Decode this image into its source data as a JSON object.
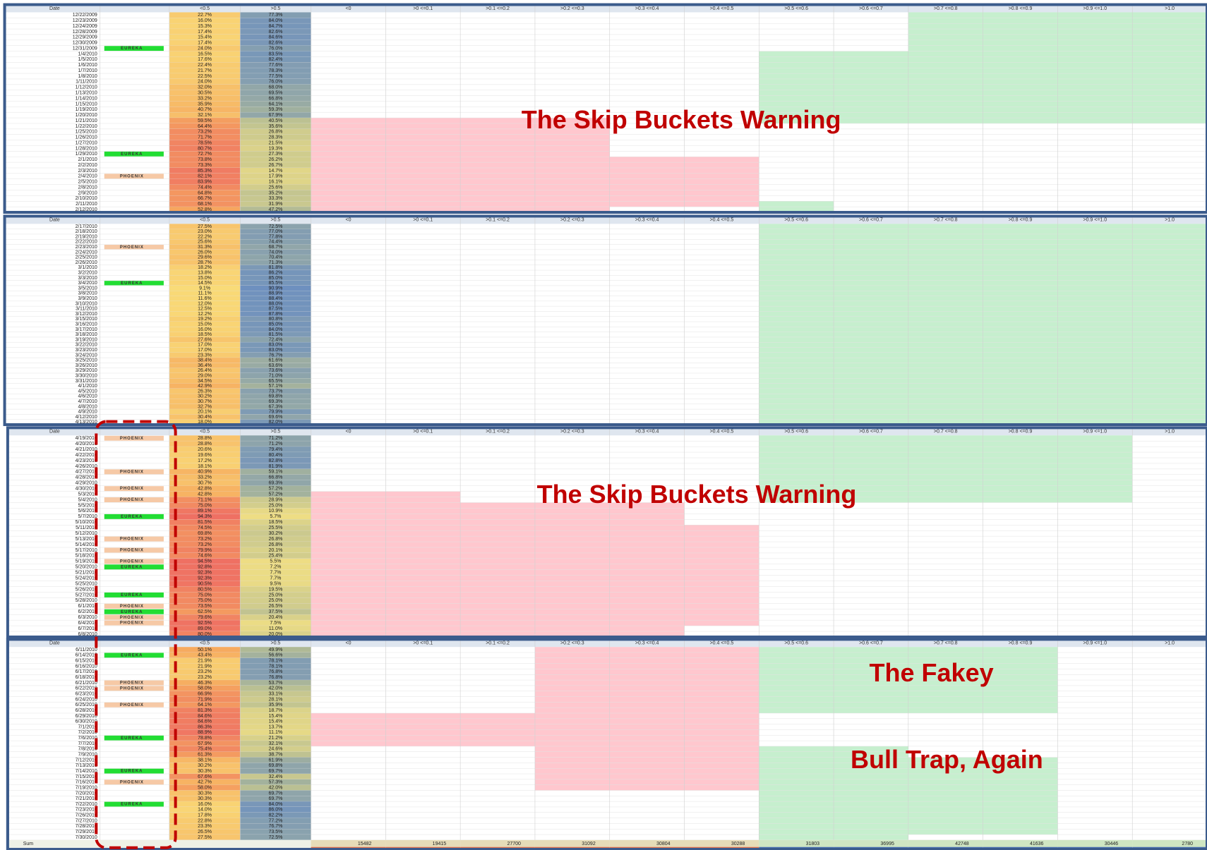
{
  "columns": [
    "Date",
    "<0.5",
    ">0.5",
    "<0",
    ">0 <=0.1",
    ">0.1 <=0.2",
    ">0.2 <=0.3",
    ">0.3 <=0.4",
    ">0.4 <=0.5",
    ">0.5 <=0.6",
    ">0.6 <=0.7",
    ">0.7 <=0.8",
    ">0.8 <=0.9",
    ">0.9 <=1.0",
    ">1.0"
  ],
  "panels": [
    {
      "rows": [
        [
          "12/22/2009",
          "22.7%",
          "77.3%"
        ],
        [
          "12/23/2009",
          "16.0%",
          "84.0%"
        ],
        [
          "12/24/2009",
          "15.3%",
          "84.7%"
        ],
        [
          "12/28/2009",
          "17.4%",
          "82.6%"
        ],
        [
          "12/29/2009",
          "15.4%",
          "84.6%"
        ],
        [
          "12/30/2009",
          "17.4%",
          "82.6%"
        ],
        [
          "12/31/2009",
          "24.0%",
          "76.0%",
          "EUREKA"
        ],
        [
          "1/4/2010",
          "16.5%",
          "83.5%"
        ],
        [
          "1/5/2010",
          "17.6%",
          "82.4%"
        ],
        [
          "1/6/2010",
          "22.4%",
          "77.6%"
        ],
        [
          "1/7/2010",
          "21.7%",
          "78.3%"
        ],
        [
          "1/8/2010",
          "22.5%",
          "77.5%"
        ],
        [
          "1/11/2010",
          "24.0%",
          "76.0%"
        ],
        [
          "1/12/2010",
          "32.0%",
          "68.0%"
        ],
        [
          "1/13/2010",
          "30.5%",
          "69.5%"
        ],
        [
          "1/14/2010",
          "33.2%",
          "66.8%"
        ],
        [
          "1/15/2010",
          "35.9%",
          "64.1%"
        ],
        [
          "1/19/2010",
          "40.7%",
          "59.3%"
        ],
        [
          "1/20/2010",
          "32.1%",
          "67.9%"
        ],
        [
          "1/21/2010",
          "59.5%",
          "40.5%"
        ],
        [
          "1/22/2010",
          "64.4%",
          "35.6%"
        ],
        [
          "1/25/2010",
          "73.2%",
          "26.8%"
        ],
        [
          "1/26/2010",
          "71.7%",
          "28.3%"
        ],
        [
          "1/27/2010",
          "78.5%",
          "21.5%"
        ],
        [
          "1/28/2010",
          "80.7%",
          "19.3%"
        ],
        [
          "1/29/2010",
          "72.7%",
          "27.3%",
          "EUREKA"
        ],
        [
          "2/1/2010",
          "73.8%",
          "26.2%"
        ],
        [
          "2/2/2010",
          "73.3%",
          "26.7%"
        ],
        [
          "2/3/2010",
          "85.3%",
          "14.7%"
        ],
        [
          "2/4/2010",
          "82.1%",
          "17.9%",
          "PHOENIX"
        ],
        [
          "2/5/2010",
          "83.9%",
          "16.1%"
        ],
        [
          "2/8/2010",
          "74.4%",
          "25.6%"
        ],
        [
          "2/9/2010",
          "64.8%",
          "35.2%"
        ],
        [
          "2/10/2010",
          "66.7%",
          "33.3%"
        ],
        [
          "2/11/2010",
          "68.1%",
          "31.9%"
        ],
        [
          "2/12/2010",
          "52.8%",
          "47.2%"
        ]
      ]
    },
    {
      "rows": [
        [
          "2/17/2010",
          "27.5%",
          "72.5%"
        ],
        [
          "2/18/2010",
          "23.0%",
          "77.0%"
        ],
        [
          "2/19/2010",
          "22.2%",
          "77.8%"
        ],
        [
          "2/22/2010",
          "25.6%",
          "74.4%"
        ],
        [
          "2/23/2010",
          "31.3%",
          "68.7%",
          "PHOENIX"
        ],
        [
          "2/24/2010",
          "26.0%",
          "74.0%"
        ],
        [
          "2/25/2010",
          "29.6%",
          "70.4%"
        ],
        [
          "2/26/2010",
          "28.7%",
          "71.3%"
        ],
        [
          "3/1/2010",
          "18.2%",
          "81.8%"
        ],
        [
          "3/2/2010",
          "13.8%",
          "86.2%"
        ],
        [
          "3/3/2010",
          "15.0%",
          "85.0%"
        ],
        [
          "3/4/2010",
          "14.5%",
          "85.5%",
          "EUREKA"
        ],
        [
          "3/5/2010",
          "9.1%",
          "90.9%"
        ],
        [
          "3/8/2010",
          "11.1%",
          "88.9%"
        ],
        [
          "3/9/2010",
          "11.6%",
          "88.4%"
        ],
        [
          "3/10/2010",
          "12.0%",
          "88.0%"
        ],
        [
          "3/11/2010",
          "12.5%",
          "87.5%"
        ],
        [
          "3/12/2010",
          "12.2%",
          "87.8%"
        ],
        [
          "3/15/2010",
          "19.2%",
          "80.8%"
        ],
        [
          "3/16/2010",
          "15.0%",
          "85.0%"
        ],
        [
          "3/17/2010",
          "16.0%",
          "84.0%"
        ],
        [
          "3/18/2010",
          "18.5%",
          "81.5%"
        ],
        [
          "3/19/2010",
          "27.6%",
          "72.4%"
        ],
        [
          "3/22/2010",
          "17.0%",
          "83.0%"
        ],
        [
          "3/23/2010",
          "17.0%",
          "83.0%"
        ],
        [
          "3/24/2010",
          "23.3%",
          "76.7%"
        ],
        [
          "3/25/2010",
          "38.4%",
          "61.6%"
        ],
        [
          "3/26/2010",
          "36.4%",
          "63.6%"
        ],
        [
          "3/29/2010",
          "26.4%",
          "73.6%"
        ],
        [
          "3/30/2010",
          "29.0%",
          "71.0%"
        ],
        [
          "3/31/2010",
          "34.5%",
          "65.5%"
        ],
        [
          "4/1/2010",
          "42.9%",
          "57.1%"
        ],
        [
          "4/5/2010",
          "26.3%",
          "73.7%"
        ],
        [
          "4/6/2010",
          "30.2%",
          "69.8%"
        ],
        [
          "4/7/2010",
          "30.7%",
          "69.3%"
        ],
        [
          "4/8/2010",
          "32.7%",
          "67.3%"
        ],
        [
          "4/9/2010",
          "20.1%",
          "79.9%"
        ],
        [
          "4/12/2010",
          "30.4%",
          "69.6%"
        ],
        [
          "4/13/2010",
          "18.0%",
          "82.0%"
        ]
      ]
    },
    {
      "rows": [
        [
          "4/19/2010",
          "28.8%",
          "71.2%",
          "PHOENIX"
        ],
        [
          "4/20/2010",
          "28.8%",
          "71.2%"
        ],
        [
          "4/21/2010",
          "20.6%",
          "79.4%"
        ],
        [
          "4/22/2010",
          "19.6%",
          "80.4%"
        ],
        [
          "4/23/2010",
          "17.2%",
          "82.8%"
        ],
        [
          "4/26/2010",
          "18.1%",
          "81.9%"
        ],
        [
          "4/27/2010",
          "40.9%",
          "59.1%",
          "PHOENIX"
        ],
        [
          "4/28/2010",
          "33.2%",
          "66.8%"
        ],
        [
          "4/29/2010",
          "30.7%",
          "69.3%"
        ],
        [
          "4/30/2010",
          "42.8%",
          "57.2%",
          "PHOENIX"
        ],
        [
          "5/3/2010",
          "42.8%",
          "57.2%"
        ],
        [
          "5/4/2010",
          "71.1%",
          "28.9%",
          "PHOENIX"
        ],
        [
          "5/5/2010",
          "75.0%",
          "25.0%"
        ],
        [
          "5/6/2010",
          "89.1%",
          "10.9%"
        ],
        [
          "5/7/2010",
          "94.3%",
          "5.7%",
          "EUREKA"
        ],
        [
          "5/10/2010",
          "81.5%",
          "18.5%"
        ],
        [
          "5/11/2010",
          "74.5%",
          "25.5%"
        ],
        [
          "5/12/2010",
          "69.8%",
          "30.2%"
        ],
        [
          "5/13/2010",
          "73.2%",
          "26.8%",
          "PHOENIX"
        ],
        [
          "5/14/2010",
          "73.2%",
          "26.8%"
        ],
        [
          "5/17/2010",
          "79.9%",
          "20.1%",
          "PHOENIX"
        ],
        [
          "5/18/2010",
          "74.6%",
          "25.4%"
        ],
        [
          "5/19/2010",
          "94.5%",
          "5.5%",
          "PHOENIX"
        ],
        [
          "5/20/2010",
          "92.8%",
          "7.2%",
          "EUREKA"
        ],
        [
          "5/21/2010",
          "92.3%",
          "7.7%"
        ],
        [
          "5/24/2010",
          "92.3%",
          "7.7%"
        ],
        [
          "5/25/2010",
          "90.5%",
          "9.5%"
        ],
        [
          "5/26/2010",
          "80.5%",
          "19.5%"
        ],
        [
          "5/27/2010",
          "75.0%",
          "25.0%",
          "EUREKA"
        ],
        [
          "5/28/2010",
          "75.0%",
          "25.0%"
        ],
        [
          "6/1/2010",
          "73.5%",
          "26.5%",
          "PHOENIX"
        ],
        [
          "6/2/2010",
          "62.5%",
          "37.5%",
          "EUREKA"
        ],
        [
          "6/3/2010",
          "79.6%",
          "20.4%",
          "PHOENIX"
        ],
        [
          "6/4/2010",
          "92.5%",
          "7.5%",
          "PHOENIX"
        ],
        [
          "6/7/2010",
          "89.0%",
          "11.0%"
        ],
        [
          "6/8/2010",
          "80.0%",
          "20.0%"
        ]
      ]
    },
    {
      "rows": [
        [
          "6/11/2010",
          "50.1%",
          "49.9%"
        ],
        [
          "6/14/2010",
          "43.4%",
          "56.6%",
          "EUREKA"
        ],
        [
          "6/15/2010",
          "21.9%",
          "78.1%"
        ],
        [
          "6/16/2010",
          "21.9%",
          "78.1%"
        ],
        [
          "6/17/2010",
          "23.2%",
          "76.8%"
        ],
        [
          "6/18/2010",
          "23.2%",
          "76.8%"
        ],
        [
          "6/21/2010",
          "46.3%",
          "53.7%",
          "PHOENIX"
        ],
        [
          "6/22/2010",
          "58.0%",
          "42.0%",
          "PHOENIX"
        ],
        [
          "6/23/2010",
          "66.9%",
          "33.1%"
        ],
        [
          "6/24/2010",
          "71.9%",
          "28.1%"
        ],
        [
          "6/25/2010",
          "64.1%",
          "35.9%",
          "PHOENIX"
        ],
        [
          "6/28/2010",
          "81.3%",
          "18.7%"
        ],
        [
          "6/29/2010",
          "84.6%",
          "15.4%"
        ],
        [
          "6/30/2010",
          "84.6%",
          "15.4%"
        ],
        [
          "7/1/2010",
          "86.3%",
          "13.7%"
        ],
        [
          "7/2/2010",
          "88.9%",
          "11.1%"
        ],
        [
          "7/6/2010",
          "78.8%",
          "21.2%",
          "EUREKA"
        ],
        [
          "7/7/2010",
          "67.9%",
          "32.1%"
        ],
        [
          "7/8/2010",
          "75.4%",
          "24.6%"
        ],
        [
          "7/9/2010",
          "61.3%",
          "38.7%"
        ],
        [
          "7/12/2010",
          "38.1%",
          "61.9%"
        ],
        [
          "7/13/2010",
          "30.2%",
          "69.8%"
        ],
        [
          "7/14/2010",
          "30.3%",
          "69.7%",
          "EUREKA"
        ],
        [
          "7/15/2010",
          "67.6%",
          "32.4%"
        ],
        [
          "7/16/2010",
          "42.7%",
          "57.3%",
          "PHOENIX"
        ],
        [
          "7/19/2010",
          "58.0%",
          "42.0%"
        ],
        [
          "7/20/2010",
          "30.3%",
          "69.7%"
        ],
        [
          "7/21/2010",
          "30.3%",
          "69.7%"
        ],
        [
          "7/22/2010",
          "16.0%",
          "84.0%",
          "EUREKA"
        ],
        [
          "7/23/2010",
          "14.0%",
          "86.0%"
        ],
        [
          "7/26/2010",
          "17.8%",
          "82.2%"
        ],
        [
          "7/27/2010",
          "22.8%",
          "77.2%"
        ],
        [
          "7/28/2010",
          "23.3%",
          "76.7%"
        ],
        [
          "7/29/2010",
          "26.5%",
          "73.5%"
        ],
        [
          "7/30/2010",
          "27.5%",
          "72.5%"
        ]
      ]
    }
  ],
  "sum": {
    "label": "Sum",
    "values": [
      15482,
      19415,
      27700,
      31092,
      30804,
      30288,
      31803,
      36995,
      42748,
      41636,
      30446,
      2780
    ]
  },
  "annotations": [
    "The Skip Buckets Warning",
    "The Skip Buckets Warning",
    "The Fakey",
    "Bull Trap, Again"
  ]
}
